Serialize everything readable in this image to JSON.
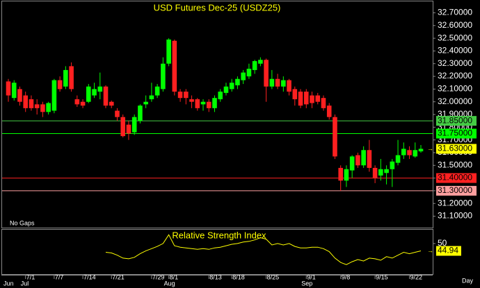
{
  "chart_data": [
    {
      "type": "candlestick",
      "title": "USD Futures Dec-25 (USDZ25)",
      "annotation": "No Gaps",
      "period": "Day",
      "categories": [
        null,
        null,
        null,
        "7/1",
        null,
        null,
        null,
        null,
        "7/7",
        null,
        null,
        null,
        null,
        "7/14",
        null,
        null,
        null,
        null,
        "7/21",
        null,
        null,
        null,
        null,
        null,
        null,
        "7/29",
        null,
        null,
        "8/1",
        null,
        null,
        null,
        null,
        null,
        null,
        "8/13",
        null,
        null,
        null,
        "8/18",
        null,
        null,
        null,
        null,
        null,
        "8/25",
        null,
        null,
        null,
        null,
        null,
        null,
        "9/1",
        null,
        null,
        null,
        null,
        null,
        "9/8",
        null,
        null,
        null,
        null,
        null,
        "9/15",
        null,
        null,
        null,
        null,
        null,
        "9/22",
        null,
        null
      ],
      "months": [
        "Jun",
        null,
        null,
        "Jul",
        null,
        null,
        null,
        null,
        null,
        null,
        null,
        null,
        null,
        null,
        null,
        null,
        null,
        null,
        null,
        null,
        null,
        null,
        null,
        null,
        null,
        null,
        null,
        null,
        "Aug",
        null,
        null,
        null,
        null,
        null,
        null,
        null,
        null,
        null,
        null,
        null,
        null,
        null,
        null,
        null,
        null,
        null,
        null,
        null,
        null,
        null,
        null,
        null,
        "Sep",
        null,
        null,
        null,
        null,
        null,
        null,
        null,
        null,
        null,
        null,
        null,
        null,
        null,
        null,
        null,
        null,
        null,
        null,
        null,
        null
      ],
      "open": [
        32.16,
        32.03,
        32.1,
        32.05,
        32.02,
        31.98,
        31.98,
        31.92,
        31.93,
        32.17,
        32.12,
        32.28,
        32.02,
        32.0,
        32.0,
        32.05,
        32.08,
        32.12,
        32.0,
        31.93,
        31.88,
        31.82,
        31.76,
        31.85,
        31.98,
        32.02,
        32.05,
        32.1,
        32.3,
        32.48,
        32.08,
        32.08,
        32.02,
        32.02,
        31.98,
        32.0,
        31.95,
        32.02,
        32.07,
        32.1,
        32.13,
        32.17,
        32.2,
        32.25,
        32.3,
        32.33,
        32.12,
        32.18,
        32.12,
        32.17,
        32.1,
        32.08,
        32.08,
        32.05,
        32.05,
        32.03,
        31.97,
        31.88,
        31.48,
        31.38,
        31.46,
        31.58,
        31.5,
        31.62,
        31.48,
        31.42,
        31.44,
        31.47,
        31.52,
        31.58,
        31.62,
        31.57,
        31.61
      ],
      "high": [
        32.18,
        32.17,
        32.12,
        32.08,
        32.05,
        32.02,
        32.0,
        32.0,
        32.18,
        32.2,
        32.28,
        32.31,
        32.05,
        32.02,
        32.14,
        32.15,
        32.23,
        32.13,
        32.01,
        31.95,
        31.9,
        31.85,
        31.9,
        31.98,
        32.05,
        32.15,
        32.14,
        32.35,
        32.5,
        32.49,
        32.1,
        32.1,
        32.05,
        32.03,
        32.02,
        32.02,
        32.05,
        32.1,
        32.15,
        32.18,
        32.2,
        32.25,
        32.3,
        32.33,
        32.35,
        32.34,
        32.25,
        32.22,
        32.2,
        32.18,
        32.12,
        32.1,
        32.1,
        32.08,
        32.07,
        32.05,
        31.99,
        31.9,
        31.5,
        31.5,
        31.58,
        31.6,
        31.65,
        31.7,
        31.5,
        31.55,
        31.5,
        31.55,
        31.7,
        31.68,
        31.65,
        31.68,
        31.66
      ],
      "low": [
        32.0,
        32.01,
        31.97,
        31.92,
        31.93,
        31.9,
        31.88,
        31.9,
        31.91,
        32.08,
        32.1,
        32.08,
        31.96,
        31.95,
        31.99,
        32.03,
        32.02,
        31.95,
        31.95,
        31.85,
        31.72,
        31.7,
        31.74,
        31.83,
        31.95,
        32.0,
        32.03,
        32.08,
        32.28,
        32.05,
        32.0,
        31.98,
        31.95,
        31.93,
        31.93,
        31.92,
        31.92,
        32.0,
        32.05,
        32.08,
        32.1,
        32.14,
        32.18,
        32.22,
        32.28,
        32.0,
        32.1,
        32.1,
        32.08,
        32.05,
        31.97,
        31.95,
        31.95,
        31.95,
        31.98,
        31.93,
        31.86,
        31.55,
        31.3,
        31.33,
        31.4,
        31.48,
        31.48,
        31.45,
        31.36,
        31.38,
        31.35,
        31.33,
        31.5,
        31.55,
        31.55,
        31.56,
        31.6
      ],
      "close": [
        32.05,
        32.15,
        32.0,
        31.95,
        31.95,
        31.95,
        31.92,
        31.99,
        32.17,
        32.1,
        32.25,
        32.1,
        31.98,
        31.97,
        32.12,
        32.1,
        32.12,
        31.97,
        31.97,
        31.88,
        31.73,
        31.75,
        31.88,
        31.97,
        32.0,
        32.05,
        32.12,
        32.3,
        32.49,
        32.08,
        32.03,
        32.03,
        32.0,
        31.95,
        32.0,
        31.95,
        32.03,
        32.08,
        32.12,
        32.15,
        32.18,
        32.23,
        32.26,
        32.32,
        32.33,
        32.12,
        32.18,
        32.12,
        32.17,
        32.08,
        32.02,
        31.97,
        31.98,
        31.99,
        32.0,
        31.95,
        31.88,
        31.57,
        31.38,
        31.47,
        31.57,
        31.5,
        31.62,
        31.48,
        31.4,
        31.47,
        31.47,
        31.53,
        31.58,
        31.63,
        31.58,
        31.62,
        31.63
      ],
      "up_color": "#00ff00",
      "down_color": "#ff2020",
      "ylim": [
        31.01,
        32.79
      ],
      "yticks": [
        {
          "value": 31.1,
          "label": "31.10000"
        },
        {
          "value": 31.2,
          "label": "31.20000"
        },
        {
          "value": 31.3,
          "label": "31.30000"
        },
        {
          "value": 31.4,
          "label": "31.40000"
        },
        {
          "value": 31.5,
          "label": "31.50000"
        },
        {
          "value": 31.6,
          "label": "31.60000"
        },
        {
          "value": 31.7,
          "label": "31.70000"
        },
        {
          "value": 31.8,
          "label": "31.80000"
        },
        {
          "value": 31.9,
          "label": "31.90000"
        },
        {
          "value": 32.0,
          "label": "32.00000"
        },
        {
          "value": 32.1,
          "label": "32.10000"
        },
        {
          "value": 32.2,
          "label": "32.20000"
        },
        {
          "value": 32.3,
          "label": "32.30000"
        },
        {
          "value": 32.4,
          "label": "32.40000"
        },
        {
          "value": 32.5,
          "label": "32.50000"
        },
        {
          "value": 32.6,
          "label": "32.60000"
        },
        {
          "value": 32.7,
          "label": "32.70000"
        }
      ],
      "levels": [
        {
          "value": 31.85,
          "label": "31.85000",
          "color": "#44cc44"
        },
        {
          "value": 31.75,
          "label": "31.75000",
          "color": "#00ff00"
        },
        {
          "value": 31.4,
          "label": "31.40000",
          "color": "#ff2020"
        },
        {
          "value": 31.3,
          "label": "31.30000",
          "color": "#ff9f9f"
        }
      ],
      "last_price": {
        "value": 31.63,
        "label": "31.63000",
        "color": "#ffff00"
      }
    },
    {
      "type": "line",
      "title": "Relative Strength Index",
      "color": "#ffff00",
      "values": [
        null,
        null,
        null,
        null,
        null,
        null,
        null,
        null,
        null,
        null,
        null,
        null,
        null,
        null,
        null,
        null,
        null,
        44,
        43.5,
        42,
        40,
        39.5,
        40.5,
        43,
        45,
        46.5,
        48,
        50,
        56,
        48.5,
        47.5,
        47,
        46.5,
        46,
        46.5,
        46,
        47,
        47.5,
        48.5,
        49.5,
        50,
        51,
        51.5,
        52.5,
        54,
        53,
        49,
        50,
        49,
        50,
        48,
        47,
        47,
        47.5,
        47.5,
        46.5,
        44.5,
        40,
        37,
        35.5,
        37.5,
        39,
        38,
        40,
        39.5,
        38.5,
        41,
        40,
        42,
        44,
        43,
        44,
        44.94
      ],
      "ylim": [
        28.5,
        59.5
      ],
      "yticks": [
        50
      ],
      "last_value": {
        "value": 44.94,
        "label": "44.94"
      }
    }
  ]
}
